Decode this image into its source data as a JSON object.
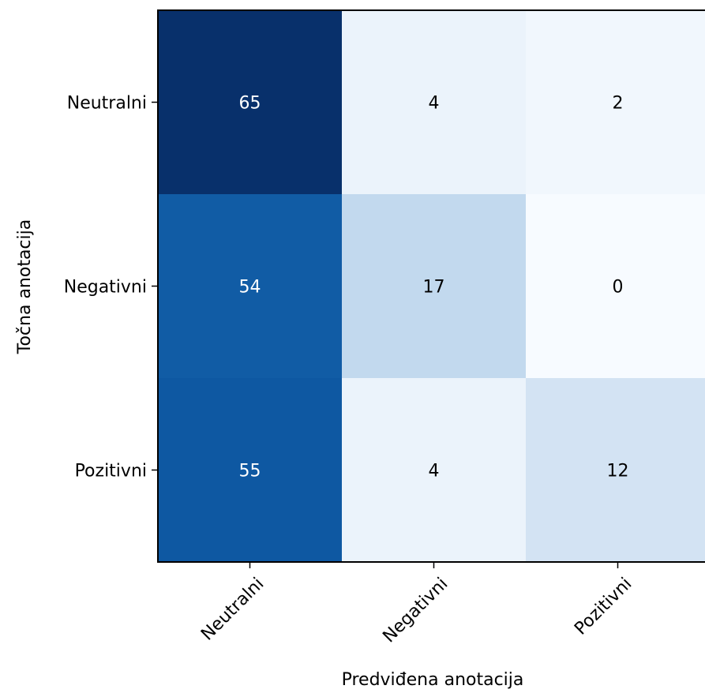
{
  "chart_data": {
    "type": "heatmap",
    "title": "",
    "xlabel": "Predviđena anotacija",
    "ylabel": "Točna anotacija",
    "x_categories": [
      "Neutralni",
      "Negativni",
      "Pozitivni"
    ],
    "y_categories": [
      "Neutralni",
      "Negativni",
      "Pozitivni"
    ],
    "values": [
      [
        65,
        4,
        2
      ],
      [
        54,
        17,
        0
      ],
      [
        55,
        4,
        12
      ]
    ],
    "value_range": [
      0,
      65
    ],
    "colormap": "Blues",
    "colorscale_stops": [
      "#f7fbff",
      "#deebf7",
      "#c6dbef",
      "#9ecae1",
      "#6baed6",
      "#4292c6",
      "#2171b5",
      "#08519c",
      "#08306b"
    ],
    "grid": false,
    "legend": "none",
    "x_tick_rotation": "45deg"
  }
}
